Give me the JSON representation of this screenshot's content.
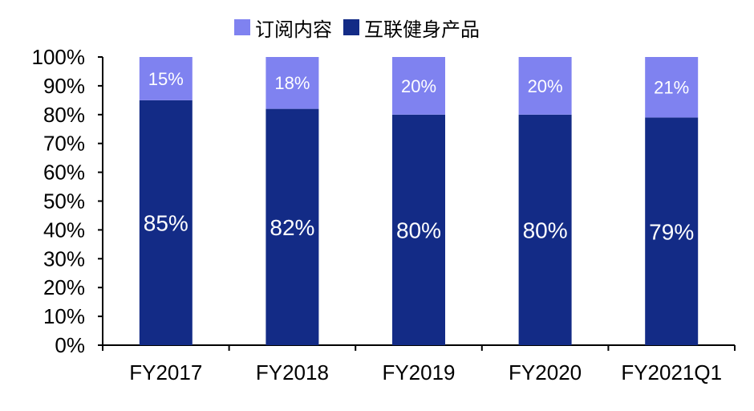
{
  "chart_data": {
    "type": "bar",
    "stacked": true,
    "categories": [
      "FY2017",
      "FY2018",
      "FY2019",
      "FY2020",
      "FY2021Q1"
    ],
    "series": [
      {
        "name": "互联健身产品",
        "values": [
          85,
          82,
          80,
          80,
          79
        ],
        "labels": [
          "85%",
          "82%",
          "80%",
          "80%",
          "79%"
        ],
        "color": "#132b86"
      },
      {
        "name": "订阅内容",
        "values": [
          15,
          18,
          20,
          20,
          21
        ],
        "labels": [
          "15%",
          "18%",
          "20%",
          "20%",
          "21%"
        ],
        "color": "#7f82f0"
      }
    ],
    "ylim": [
      0,
      100
    ],
    "yticks": [
      "0%",
      "10%",
      "20%",
      "30%",
      "40%",
      "50%",
      "60%",
      "70%",
      "80%",
      "90%",
      "100%"
    ],
    "grid": false,
    "legend_position": "top"
  }
}
